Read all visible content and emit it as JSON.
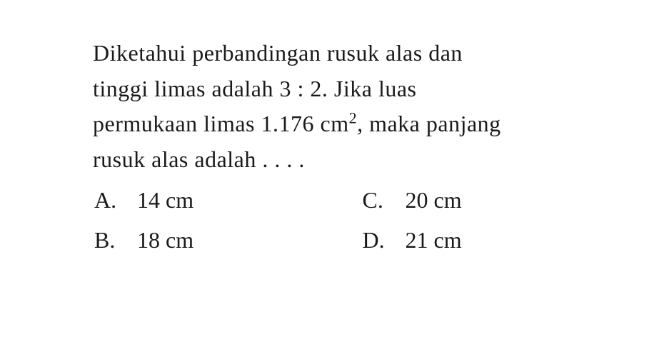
{
  "question": {
    "line1": "Diketahui perbandingan rusuk alas dan",
    "line2": "tinggi limas adalah 3 : 2. Jika luas",
    "line3_part1": "permukaan limas 1.176 cm",
    "line3_sup": "2",
    "line3_part2": ", maka panjang",
    "line4": "rusuk alas adalah . . . ."
  },
  "options": {
    "a": {
      "letter": "A.",
      "value": "14 cm"
    },
    "b": {
      "letter": "B.",
      "value": "18 cm"
    },
    "c": {
      "letter": "C.",
      "value": "20 cm"
    },
    "d": {
      "letter": "D.",
      "value": "21 cm"
    }
  },
  "style": {
    "font_family": "Times New Roman",
    "font_size_pt": 24,
    "text_color": "#1a1a1a",
    "background_color": "#ffffff"
  }
}
